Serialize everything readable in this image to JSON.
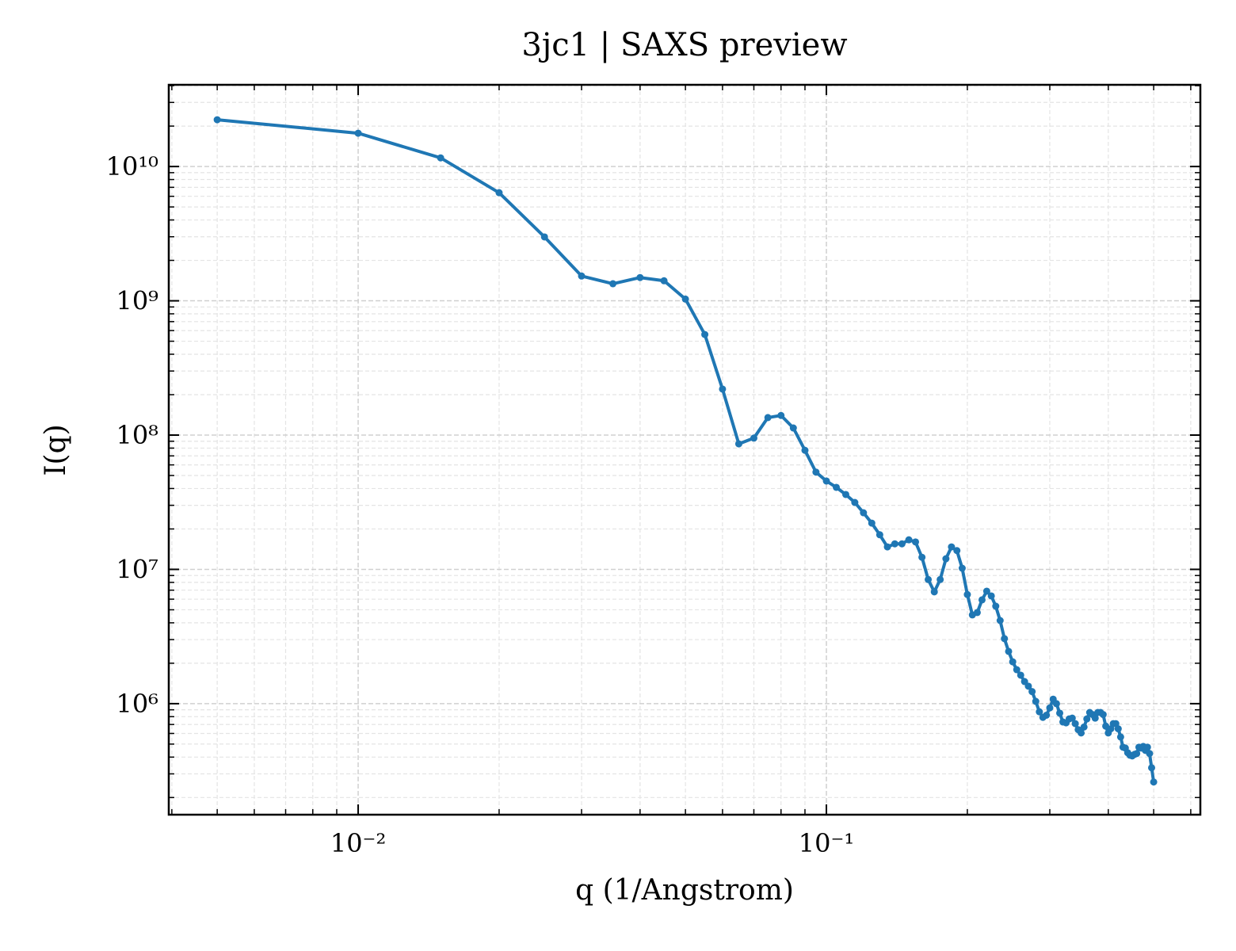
{
  "chart_data": {
    "type": "line",
    "title": "3jc1 | SAXS preview",
    "xlabel": "q (1/Angstrom)",
    "ylabel": "I(q)",
    "xscale": "log",
    "yscale": "log",
    "grid": true,
    "minor_grid": true,
    "xlim": [
      0.00394,
      0.629
    ],
    "ylim": [
      149000,
      40600000000
    ],
    "xticks": [
      {
        "value": 0.01,
        "label": "10⁻²"
      },
      {
        "value": 0.1,
        "label": "10⁻¹"
      }
    ],
    "yticks": [
      {
        "value": 1000000,
        "label": "10⁶"
      },
      {
        "value": 10000000,
        "label": "10⁷"
      },
      {
        "value": 100000000,
        "label": "10⁸"
      },
      {
        "value": 1000000000,
        "label": "10⁹"
      },
      {
        "value": 10000000000,
        "label": "10¹⁰"
      }
    ],
    "xminor": [
      0.004,
      0.005,
      0.006,
      0.007,
      0.008,
      0.009,
      0.02,
      0.03,
      0.04,
      0.05,
      0.06,
      0.07,
      0.08,
      0.09,
      0.2,
      0.3,
      0.4,
      0.5,
      0.6
    ],
    "yminor": [
      200000,
      300000,
      400000,
      500000,
      600000,
      700000,
      800000,
      900000,
      2000000,
      3000000,
      4000000,
      5000000,
      6000000,
      7000000,
      8000000,
      9000000,
      20000000,
      30000000,
      40000000,
      50000000,
      60000000,
      70000000,
      80000000,
      90000000,
      200000000,
      300000000,
      400000000,
      500000000,
      600000000,
      700000000,
      800000000,
      900000000,
      2000000000,
      3000000000,
      4000000000,
      5000000000,
      6000000000,
      7000000000,
      8000000000,
      9000000000,
      20000000000,
      30000000000,
      40000000000
    ],
    "x": [
      0.005,
      0.01,
      0.015,
      0.02,
      0.025,
      0.03,
      0.035,
      0.04,
      0.045,
      0.05,
      0.055,
      0.06,
      0.065,
      0.07,
      0.075,
      0.08,
      0.085,
      0.09,
      0.095,
      0.1,
      0.105,
      0.11,
      0.115,
      0.12,
      0.125,
      0.13,
      0.135,
      0.14,
      0.145,
      0.15,
      0.155,
      0.16,
      0.165,
      0.17,
      0.175,
      0.18,
      0.185,
      0.19,
      0.195,
      0.2,
      0.205,
      0.21,
      0.215,
      0.22,
      0.225,
      0.23,
      0.235,
      0.24,
      0.245,
      0.25,
      0.255,
      0.26,
      0.265,
      0.27,
      0.275,
      0.28,
      0.285,
      0.29,
      0.295,
      0.3,
      0.305,
      0.31,
      0.315,
      0.32,
      0.325,
      0.33,
      0.335,
      0.34,
      0.345,
      0.35,
      0.355,
      0.36,
      0.365,
      0.37,
      0.375,
      0.38,
      0.385,
      0.39,
      0.395,
      0.4,
      0.405,
      0.41,
      0.415,
      0.42,
      0.425,
      0.43,
      0.435,
      0.44,
      0.445,
      0.45,
      0.455,
      0.46,
      0.465,
      0.47,
      0.475,
      0.48,
      0.485,
      0.49,
      0.495,
      0.5
    ],
    "series": [
      {
        "name": "I(q)",
        "color": "#1f77b4",
        "values": [
          22300000000,
          17700000000,
          11600000000,
          6380000000,
          2990000000,
          1530000000,
          1340000000,
          1490000000,
          1410000000,
          1030000000,
          561000000,
          220000000,
          86000000,
          95000000,
          135000000,
          140000000,
          113000000,
          77000000,
          53000000,
          45500000,
          40800000,
          36100000,
          31500000,
          26400000,
          22100000,
          18100000,
          14700000,
          15500000,
          15500000,
          16600000,
          16000000,
          12300000,
          8400000,
          6800000,
          8400000,
          12000000,
          14700000,
          13800000,
          10200000,
          6500000,
          4580000,
          4770000,
          5930000,
          6880000,
          6340000,
          5320000,
          4160000,
          3050000,
          2450000,
          2050000,
          1790000,
          1630000,
          1460000,
          1350000,
          1230000,
          1040000,
          870000,
          790000,
          820000,
          930000,
          1080000,
          1000000,
          850000,
          730000,
          720000,
          770000,
          780000,
          710000,
          640000,
          605000,
          670000,
          770000,
          860000,
          830000,
          780000,
          860000,
          860000,
          830000,
          680000,
          605000,
          650000,
          710000,
          710000,
          650000,
          565000,
          474000,
          467000,
          431000,
          413000,
          408000,
          419000,
          425000,
          474000,
          467000,
          480000,
          449000,
          474000,
          425000,
          333000,
          261000
        ]
      }
    ]
  }
}
